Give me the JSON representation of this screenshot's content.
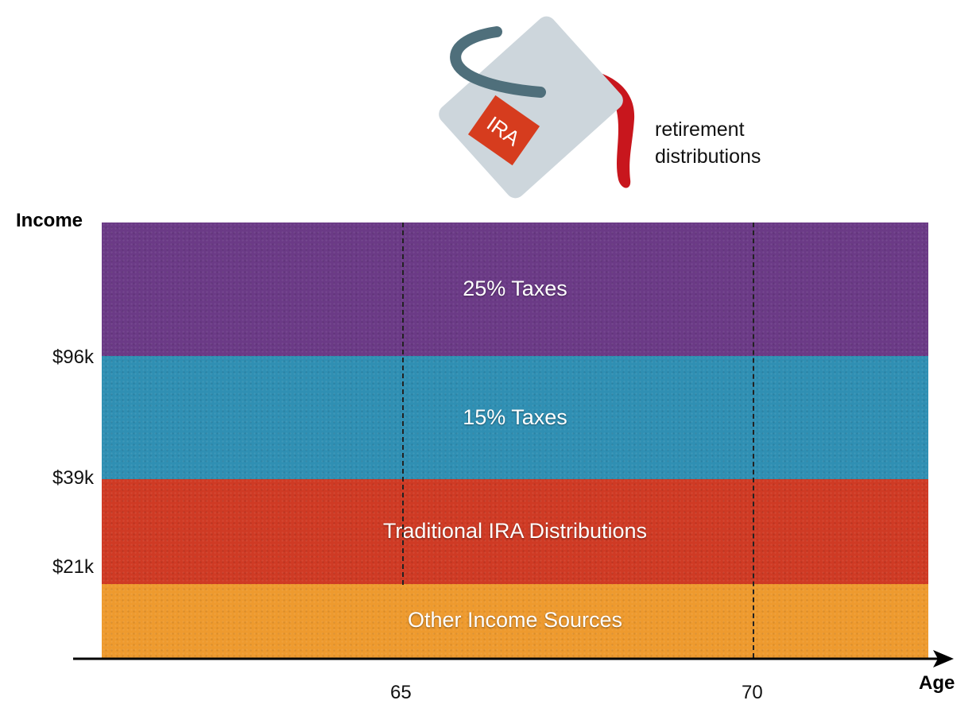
{
  "illustration": {
    "bucket_label": "IRA",
    "callout_lines": [
      "retirement",
      "distributions"
    ],
    "colors": {
      "bucket": "#cdd6dc",
      "handle": "#4f6f7b",
      "stream": "#c8161d",
      "tag": "#d63c1e"
    }
  },
  "axes": {
    "y_title": "Income",
    "x_title": "Age",
    "y_ticks": [
      "$96k",
      "$39k",
      "$21k"
    ],
    "x_ticks": [
      "65",
      "70"
    ]
  },
  "bands": [
    {
      "label": "25% Taxes",
      "color": "#6b3a86"
    },
    {
      "label": "15% Taxes",
      "color": "#2f8fb3"
    },
    {
      "label": "Traditional IRA Distributions",
      "color": "#cf3a24"
    },
    {
      "label": "Other Income Sources",
      "color": "#ee9a2e"
    }
  ]
}
